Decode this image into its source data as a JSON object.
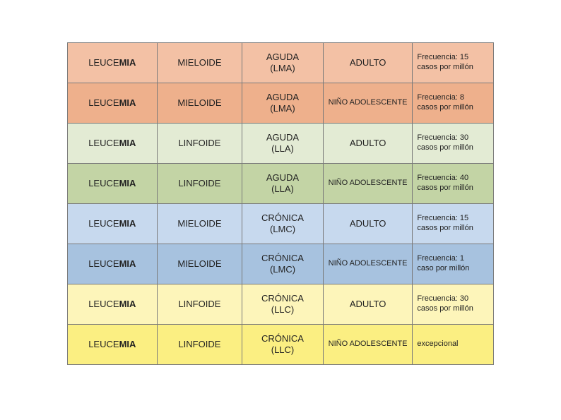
{
  "table": {
    "type": "table",
    "column_widths_pct": [
      21,
      20,
      19,
      21,
      19
    ],
    "border_color": "#7a7a7a",
    "text_color": "#222222",
    "cell_font_size": 13,
    "freq_font_size": 11,
    "pop_small_font_size": 11,
    "row_colors": {
      "orange_light": "#f3c1a5",
      "orange_dark": "#eeb08c",
      "green_light": "#e3ebd4",
      "green_dark": "#c3d4a5",
      "blue_light": "#c7d9ee",
      "blue_dark": "#a7c2df",
      "yellow_light": "#fdf5ba",
      "yellow_dark": "#fbef82"
    },
    "rows": [
      {
        "bg_key": "orange_light",
        "col1_prefix": "LEUCE",
        "col1_bold": "MIA",
        "col2": "MIELOIDE",
        "col3_line1": "AGUDA",
        "col3_line2": "(LMA)",
        "col4": "ADULTO",
        "col4_small": false,
        "col5_line1": "Frecuencia: 15",
        "col5_line2": "casos por millón"
      },
      {
        "bg_key": "orange_dark",
        "col1_prefix": "LEUCE",
        "col1_bold": "MIA",
        "col2": "MIELOIDE",
        "col3_line1": "AGUDA",
        "col3_line2": "(LMA)",
        "col4": "NIÑO ADOLESCENTE",
        "col4_small": true,
        "col5_line1": "Frecuencia: 8",
        "col5_line2": "casos por millón"
      },
      {
        "bg_key": "green_light",
        "col1_prefix": "LEUCE",
        "col1_bold": "MIA",
        "col2": "LINFOIDE",
        "col3_line1": "AGUDA",
        "col3_line2": "(LLA)",
        "col4": "ADULTO",
        "col4_small": false,
        "col5_line1": "Frecuencia: 30",
        "col5_line2": "casos por millón"
      },
      {
        "bg_key": "green_dark",
        "col1_prefix": "LEUCE",
        "col1_bold": "MIA",
        "col2": "LINFOIDE",
        "col3_line1": "AGUDA",
        "col3_line2": "(LLA)",
        "col4": "NIÑO ADOLESCENTE",
        "col4_small": true,
        "col5_line1": "Frecuencia: 40",
        "col5_line2": "casos por millón"
      },
      {
        "bg_key": "blue_light",
        "col1_prefix": "LEUCE",
        "col1_bold": "MIA",
        "col2": "MIELOIDE",
        "col3_line1": "CRÓNICA",
        "col3_line2": "(LMC)",
        "col4": "ADULTO",
        "col4_small": false,
        "col5_line1": "Frecuencia: 15",
        "col5_line2": "casos por millón"
      },
      {
        "bg_key": "blue_dark",
        "col1_prefix": "LEUCE",
        "col1_bold": "MIA",
        "col2": "MIELOIDE",
        "col3_line1": "CRÓNICA",
        "col3_line2": "(LMC)",
        "col4": "NIÑO ADOLESCENTE",
        "col4_small": true,
        "col5_line1": "Frecuencia: 1",
        "col5_line2": "caso por millón"
      },
      {
        "bg_key": "yellow_light",
        "col1_prefix": "LEUCE",
        "col1_bold": "MIA",
        "col2": "LINFOIDE",
        "col3_line1": "CRÓNICA",
        "col3_line2": "(LLC)",
        "col4": "ADULTO",
        "col4_small": false,
        "col5_line1": "Frecuencia: 30",
        "col5_line2": "casos por millón"
      },
      {
        "bg_key": "yellow_dark",
        "col1_prefix": "LEUCE",
        "col1_bold": "MIA",
        "col2": "LINFOIDE",
        "col3_line1": "CRÓNICA",
        "col3_line2": "(LLC)",
        "col4": "NIÑO ADOLESCENTE",
        "col4_small": true,
        "col5_line1": "excepcional",
        "col5_line2": ""
      }
    ]
  }
}
